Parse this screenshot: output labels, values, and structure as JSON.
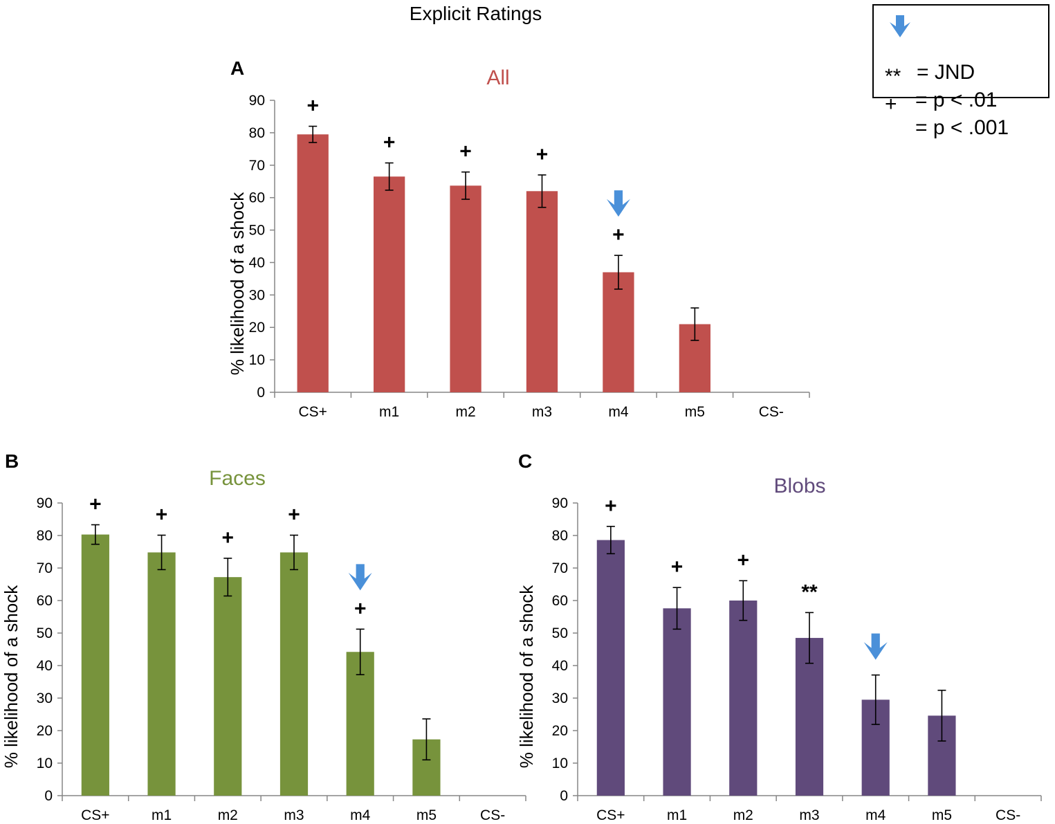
{
  "figure_title": "Explicit Ratings",
  "legend": {
    "items": [
      {
        "symbol_icon": "blue-down-arrow-icon",
        "symbol": "",
        "text": "= JND"
      },
      {
        "symbol": "**",
        "text": "= p < .01"
      },
      {
        "symbol": "+",
        "text": "= p < .001"
      }
    ]
  },
  "colors": {
    "all": "#C0504D",
    "faces": "#77933C",
    "blobs": "#604A7B",
    "arrow": "#4A90D9",
    "axis": "#868686"
  },
  "chart_data": [
    {
      "panel": "A",
      "type": "bar",
      "title": "All",
      "title_color": "#C0504D",
      "bar_color": "#C0504D",
      "ylabel": "% likelihood of a shock",
      "xlabel": "",
      "ylim": [
        0,
        90
      ],
      "yticks": [
        0,
        10,
        20,
        30,
        40,
        50,
        60,
        70,
        80,
        90
      ],
      "categories": [
        "CS+",
        "m1",
        "m2",
        "m3",
        "m4",
        "m5",
        "CS-"
      ],
      "values": [
        79.5,
        66.5,
        63.7,
        62.0,
        37.0,
        21.0,
        0
      ],
      "errors": [
        2.5,
        4.2,
        4.2,
        5.0,
        5.2,
        5.0,
        0
      ],
      "significance": [
        "+",
        "+",
        "+",
        "+",
        "+",
        "",
        ""
      ],
      "jnd_index": 4
    },
    {
      "panel": "B",
      "type": "bar",
      "title": "Faces",
      "title_color": "#77933C",
      "bar_color": "#77933C",
      "ylabel": "% likelihood of a shock",
      "xlabel": "",
      "ylim": [
        0,
        90
      ],
      "yticks": [
        0,
        10,
        20,
        30,
        40,
        50,
        60,
        70,
        80,
        90
      ],
      "categories": [
        "CS+",
        "m1",
        "m2",
        "m3",
        "m4",
        "m5",
        "CS-"
      ],
      "values": [
        80.3,
        74.8,
        67.2,
        74.8,
        44.2,
        17.3,
        0
      ],
      "errors": [
        3.0,
        5.3,
        5.8,
        5.3,
        7.0,
        6.3,
        0
      ],
      "significance": [
        "+",
        "+",
        "+",
        "+",
        "+",
        "",
        ""
      ],
      "jnd_index": 4
    },
    {
      "panel": "C",
      "type": "bar",
      "title": "Blobs",
      "title_color": "#604A7B",
      "bar_color": "#604A7B",
      "ylabel": "% likelihood of a shock",
      "xlabel": "",
      "ylim": [
        0,
        90
      ],
      "yticks": [
        0,
        10,
        20,
        30,
        40,
        50,
        60,
        70,
        80,
        90
      ],
      "categories": [
        "CS+",
        "m1",
        "m2",
        "m3",
        "m4",
        "m5",
        "CS-"
      ],
      "values": [
        78.6,
        57.6,
        60.0,
        48.5,
        29.5,
        24.6,
        0
      ],
      "errors": [
        4.2,
        6.4,
        6.1,
        7.8,
        7.6,
        7.8,
        0
      ],
      "significance": [
        "+",
        "+",
        "+",
        "**",
        "",
        "",
        ""
      ],
      "jnd_index": 4
    }
  ]
}
